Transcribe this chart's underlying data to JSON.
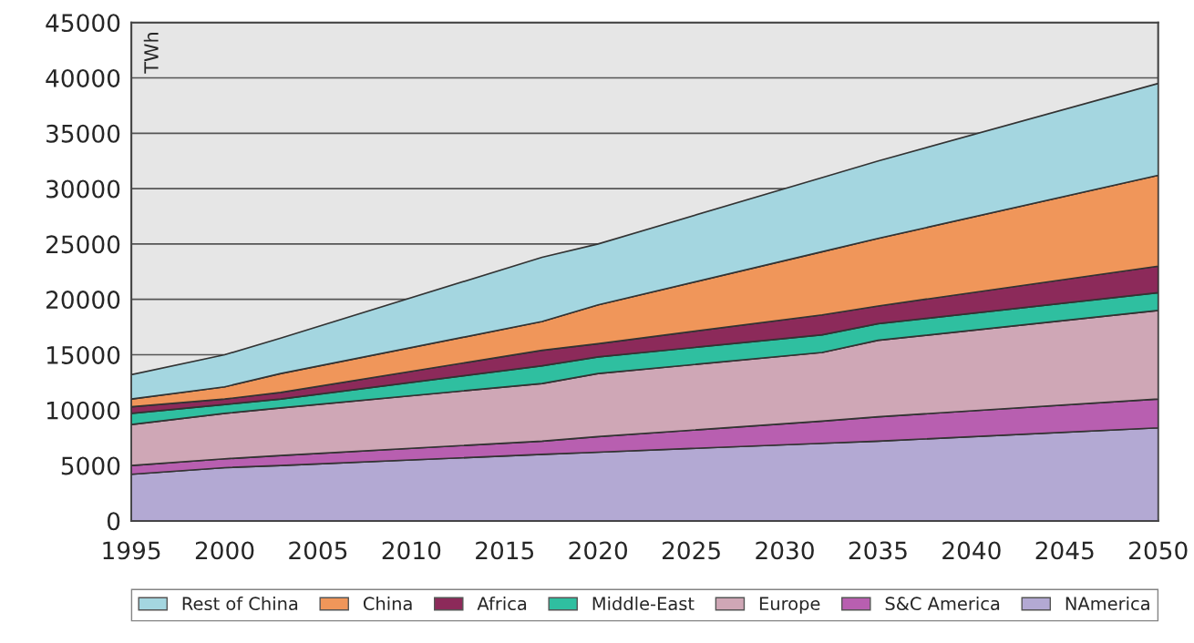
{
  "chart_data": {
    "type": "area",
    "stacked": true,
    "ylabel": "TWh",
    "x": [
      1995,
      2000,
      2003,
      2017,
      2020,
      2032,
      2035,
      2050
    ],
    "series": [
      {
        "name": "NAmerica",
        "color": "#b3a9d3",
        "values": [
          4200,
          4800,
          5000,
          6000,
          6200,
          7000,
          7200,
          8400
        ]
      },
      {
        "name": "S&C America",
        "color": "#b85fb0",
        "values": [
          800,
          800,
          900,
          1200,
          1400,
          2000,
          2200,
          2600
        ]
      },
      {
        "name": "Europe",
        "color": "#cfa7b6",
        "values": [
          3700,
          4100,
          4300,
          5200,
          5700,
          6200,
          6900,
          8000
        ]
      },
      {
        "name": "Middle-East",
        "color": "#2fbfa0",
        "values": [
          1000,
          800,
          800,
          1600,
          1500,
          1600,
          1500,
          1600
        ]
      },
      {
        "name": "Africa",
        "color": "#8c2a5a",
        "values": [
          600,
          500,
          600,
          1400,
          1200,
          1800,
          1600,
          2400
        ]
      },
      {
        "name": "China",
        "color": "#f0965a",
        "values": [
          700,
          1100,
          1700,
          2600,
          3500,
          5700,
          6100,
          8200
        ]
      },
      {
        "name": "Rest of China",
        "color": "#a4d6e0",
        "values": [
          2200,
          2900,
          3200,
          5800,
          5500,
          6700,
          7000,
          8300
        ]
      }
    ],
    "xlim": [
      1995,
      2050
    ],
    "xticks": [
      1995,
      2000,
      2005,
      2010,
      2015,
      2020,
      2025,
      2030,
      2035,
      2040,
      2045,
      2050
    ],
    "ylim": [
      0,
      45000
    ],
    "yticks": [
      0,
      5000,
      10000,
      15000,
      20000,
      25000,
      30000,
      35000,
      40000,
      45000
    ],
    "grid": "y",
    "legend": "bottom"
  }
}
